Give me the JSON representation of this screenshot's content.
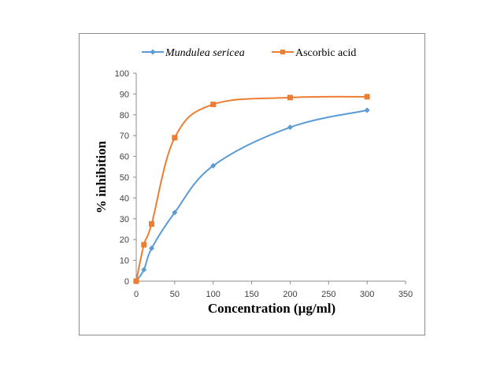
{
  "colors": {
    "series_mundulea": "#5b9bd5",
    "series_ascorbic": "#ed7d31",
    "axis": "#8c8c8c",
    "frame": "#8c8c8c"
  },
  "chart_data": {
    "type": "line",
    "title": "",
    "xlabel": "Concentration (µg/ml)",
    "ylabel": "% inhibition",
    "xlim": [
      0,
      350
    ],
    "ylim": [
      0,
      100
    ],
    "x_ticks": [
      0,
      50,
      100,
      150,
      200,
      250,
      300,
      350
    ],
    "y_ticks": [
      0,
      10,
      20,
      30,
      40,
      50,
      60,
      70,
      80,
      90,
      100
    ],
    "grid": false,
    "legend_position": "top",
    "series": [
      {
        "name": "Mundulea sericea",
        "marker": "diamond",
        "italic": true,
        "x": [
          0,
          10,
          20,
          50,
          100,
          200,
          300
        ],
        "y": [
          0,
          5.5,
          15.8,
          33,
          55.5,
          74,
          82.2
        ]
      },
      {
        "name": "Ascorbic acid",
        "marker": "square",
        "italic": false,
        "x": [
          0,
          10,
          20,
          50,
          100,
          200,
          300
        ],
        "y": [
          0,
          17.5,
          27.5,
          69,
          85,
          88.3,
          88.7
        ]
      }
    ]
  }
}
